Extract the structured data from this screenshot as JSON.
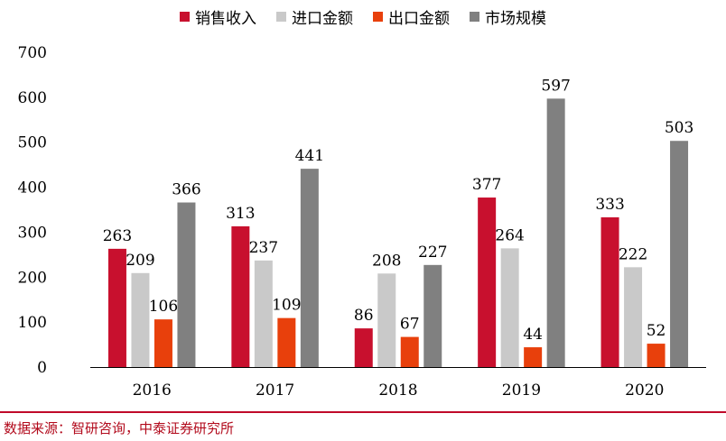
{
  "chart_data": {
    "type": "bar",
    "categories": [
      "2016",
      "2017",
      "2018",
      "2019",
      "2020"
    ],
    "series": [
      {
        "name": "销售收入",
        "values": [
          263,
          313,
          86,
          377,
          333
        ],
        "color": "#c8102e"
      },
      {
        "name": "进口金额",
        "values": [
          209,
          237,
          208,
          264,
          222
        ],
        "color": "#c9c9c9"
      },
      {
        "name": "出口金额",
        "values": [
          106,
          109,
          67,
          44,
          52
        ],
        "color": "#e8400c"
      },
      {
        "name": "市场规模",
        "values": [
          366,
          441,
          227,
          597,
          503
        ],
        "color": "#808080"
      }
    ],
    "ylim": [
      0,
      700
    ],
    "yticks": [
      0,
      100,
      200,
      300,
      400,
      500,
      600,
      700
    ],
    "grid": false,
    "legend_position": "top",
    "data_labels": true
  },
  "source": "数据来源：智研咨询，中泰证券研究所"
}
